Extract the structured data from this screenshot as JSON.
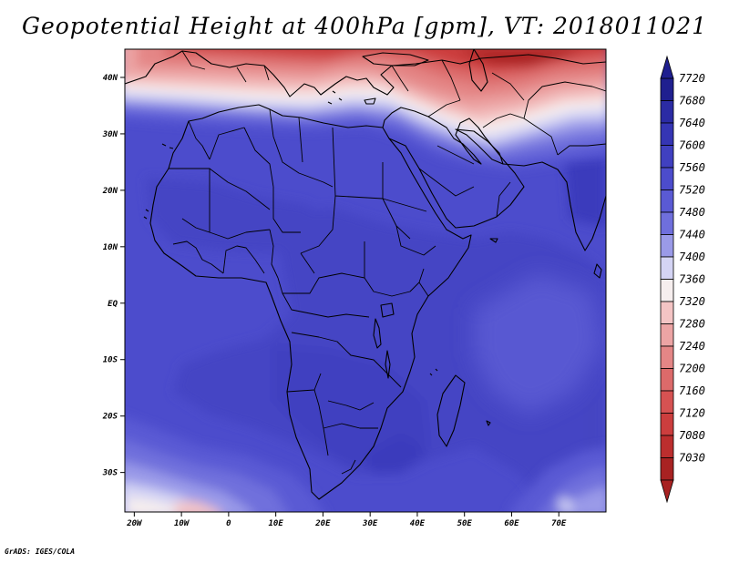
{
  "title": "Geopotential Height at 400hPa [gpm], VT: 2018011021",
  "credit": "GrADS: IGES/COLA",
  "map": {
    "lon_range": [
      -22,
      80
    ],
    "lat_range": [
      -37,
      45
    ],
    "x_ticks": [
      {
        "lon": -20,
        "label": "20W"
      },
      {
        "lon": -10,
        "label": "10W"
      },
      {
        "lon": 0,
        "label": "0"
      },
      {
        "lon": 10,
        "label": "10E"
      },
      {
        "lon": 20,
        "label": "20E"
      },
      {
        "lon": 30,
        "label": "30E"
      },
      {
        "lon": 40,
        "label": "40E"
      },
      {
        "lon": 50,
        "label": "50E"
      },
      {
        "lon": 60,
        "label": "60E"
      },
      {
        "lon": 70,
        "label": "70E"
      }
    ],
    "y_ticks": [
      {
        "lat": 40,
        "label": "40N"
      },
      {
        "lat": 30,
        "label": "30N"
      },
      {
        "lat": 20,
        "label": "20N"
      },
      {
        "lat": 10,
        "label": "10N"
      },
      {
        "lat": 0,
        "label": "EQ"
      },
      {
        "lat": -10,
        "label": "10S"
      },
      {
        "lat": -20,
        "label": "20S"
      },
      {
        "lat": -30,
        "label": "30S"
      }
    ]
  },
  "colorbar": {
    "levels": [
      {
        "label": "7720",
        "color": "#1f1f8f"
      },
      {
        "label": "7680",
        "color": "#2b2ba4"
      },
      {
        "label": "7640",
        "color": "#3535b4"
      },
      {
        "label": "7600",
        "color": "#4040c0"
      },
      {
        "label": "7560",
        "color": "#4c4ccc"
      },
      {
        "label": "7520",
        "color": "#5a5ad4"
      },
      {
        "label": "7480",
        "color": "#6f6fdc"
      },
      {
        "label": "7440",
        "color": "#9a9ae8"
      },
      {
        "label": "7400",
        "color": "#d4d4f4"
      },
      {
        "label": "7360",
        "color": "#f6eeee"
      },
      {
        "label": "7320",
        "color": "#f4c4c4"
      },
      {
        "label": "7280",
        "color": "#eca4a4"
      },
      {
        "label": "7240",
        "color": "#e48686"
      },
      {
        "label": "7200",
        "color": "#dc6a6a"
      },
      {
        "label": "7160",
        "color": "#d65252"
      },
      {
        "label": "7120",
        "color": "#cc3e3e"
      },
      {
        "label": "7080",
        "color": "#bc2e2e"
      },
      {
        "label": "7030",
        "color": "#a82222"
      }
    ]
  }
}
